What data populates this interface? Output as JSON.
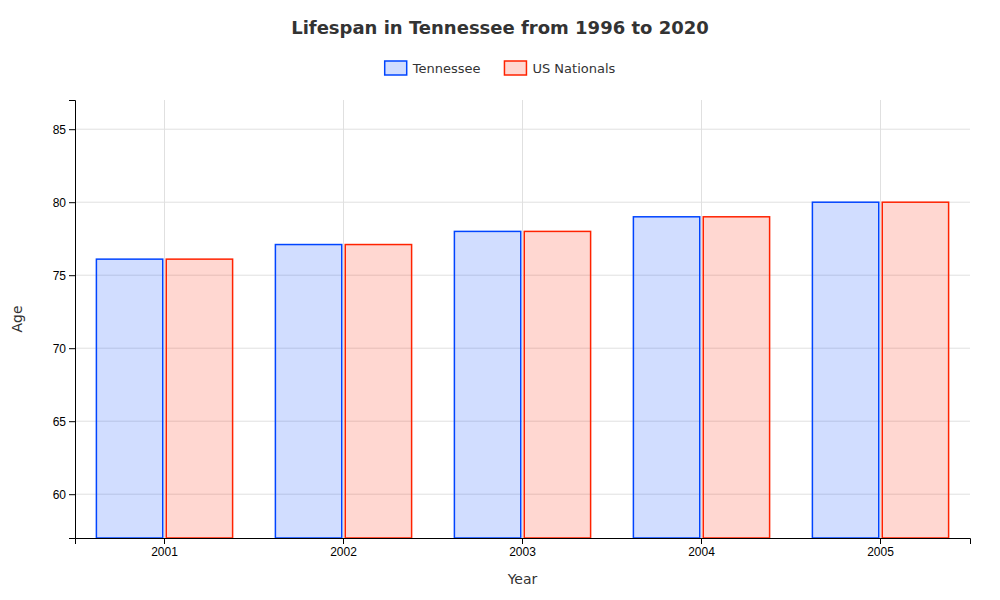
{
  "chart_data": {
    "type": "bar",
    "title": "Lifespan in Tennessee from 1996 to 2020",
    "xlabel": "Year",
    "ylabel": "Age",
    "categories": [
      "2001",
      "2002",
      "2003",
      "2004",
      "2005"
    ],
    "series": [
      {
        "name": "Tennessee",
        "color": "#0044ff",
        "values": [
          76.1,
          77.1,
          78.0,
          79.0,
          80.0
        ]
      },
      {
        "name": "US Nationals",
        "color": "#ff2200",
        "values": [
          76.1,
          77.1,
          78.0,
          79.0,
          80.0
        ]
      }
    ],
    "ylim": [
      57,
      87
    ],
    "yticks": [
      60,
      65,
      70,
      75,
      80,
      85
    ],
    "grid": true,
    "legend": "top"
  }
}
